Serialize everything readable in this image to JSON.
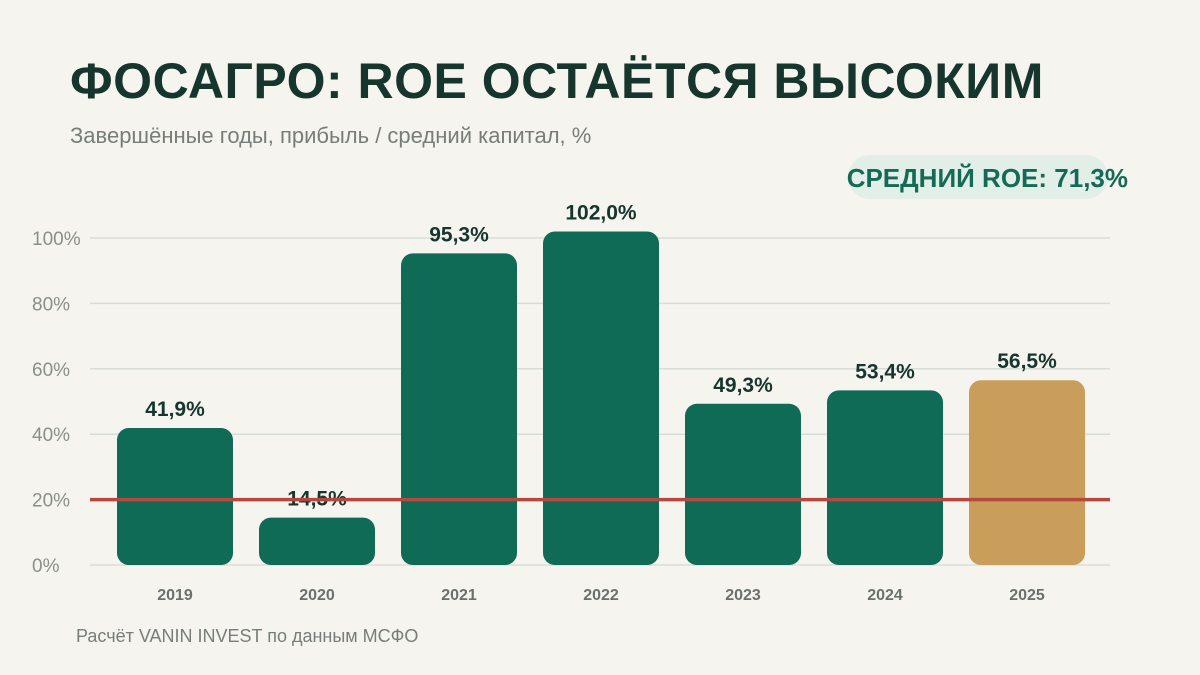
{
  "title": "ФОСАГРО: ROE ОСТАЁТСЯ ВЫСОКИМ",
  "subtitle": "Завершённые годы, прибыль / средний капитал, %",
  "badge": "СРЕДНИЙ ROE: 71,3%",
  "footer": "Расчёт VANIN INVEST по данным МСФО",
  "colors": {
    "bar": "#0f6a56",
    "highlight_bar": "#c99d5a",
    "reference_line": "#b5493f",
    "grid": "#d9ddd8"
  },
  "chart_data": {
    "type": "bar",
    "categories": [
      "2019",
      "2020",
      "2021",
      "2022",
      "2023",
      "2024",
      "2025"
    ],
    "values": [
      41.9,
      14.5,
      95.3,
      102.0,
      49.3,
      53.4,
      56.5
    ],
    "value_labels": [
      "41,9%",
      "14,5%",
      "95,3%",
      "102,0%",
      "49,3%",
      "53,4%",
      "56,5%"
    ],
    "highlighted_category": "2025",
    "yticks": [
      0,
      20,
      40,
      60,
      80,
      100
    ],
    "ytick_labels": [
      "0%",
      "20%",
      "40%",
      "60%",
      "80%",
      "100%"
    ],
    "ylim": [
      0,
      100
    ],
    "reference_line": 20,
    "grid": true
  }
}
